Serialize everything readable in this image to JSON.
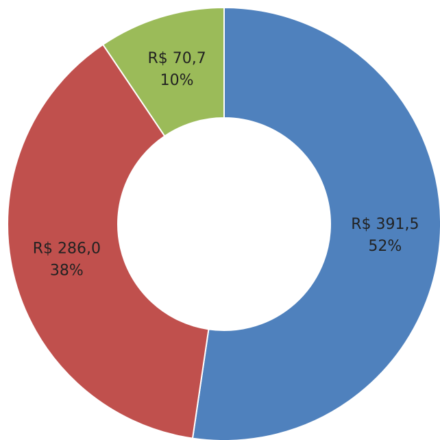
{
  "chart_data": {
    "type": "donut",
    "values": [
      391.5,
      286.0,
      70.7
    ],
    "value_labels": [
      "R$ 391,5",
      "R$ 286,0",
      "R$ 70,7"
    ],
    "percent_labels": [
      "52%",
      "38%",
      "10%"
    ],
    "colors": [
      "#4f81bd",
      "#c0504d",
      "#9bbb59"
    ]
  }
}
